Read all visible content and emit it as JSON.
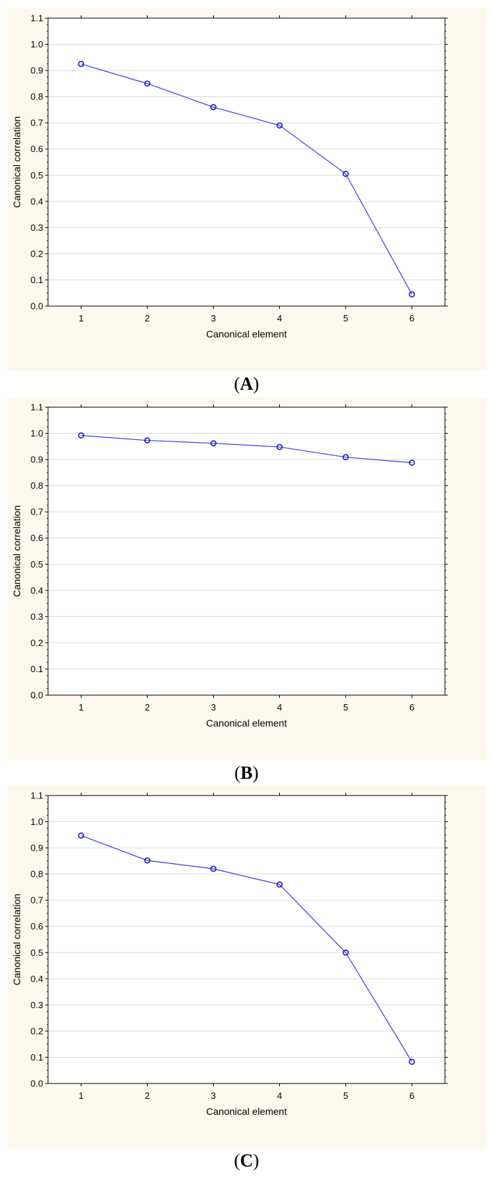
{
  "chart_data": [
    {
      "type": "line",
      "xlabel": "Canonical element",
      "ylabel": "Canonical correlation",
      "x": [
        1,
        2,
        3,
        4,
        5,
        6
      ],
      "xlim": [
        0.5,
        6.5
      ],
      "ylim": [
        0.0,
        1.1
      ],
      "yticks": [
        "0.0",
        "0.1",
        "0.2",
        "0.3",
        "0.4",
        "0.5",
        "0.6",
        "0.7",
        "0.8",
        "0.9",
        "1.0",
        "1.1"
      ],
      "grid": true,
      "series": [
        {
          "values": [
            0.925,
            0.85,
            0.76,
            0.69,
            0.505,
            0.045
          ]
        }
      ],
      "color": "#3a3aff"
    },
    {
      "type": "line",
      "xlabel": "Canonical element",
      "ylabel": "Canonical correlation",
      "x": [
        1,
        2,
        3,
        4,
        5,
        6
      ],
      "xlim": [
        0.5,
        6.5
      ],
      "ylim": [
        0.0,
        1.1
      ],
      "yticks": [
        "0.0",
        "0.1",
        "0.2",
        "0.3",
        "0.4",
        "0.5",
        "0.6",
        "0.7",
        "0.8",
        "0.9",
        "1.0",
        "1.1"
      ],
      "grid": true,
      "series": [
        {
          "values": [
            0.992,
            0.973,
            0.962,
            0.948,
            0.909,
            0.888
          ]
        }
      ],
      "color": "#3a3aff"
    },
    {
      "type": "line",
      "xlabel": "Canonical element",
      "ylabel": "Canonical correlation",
      "x": [
        1,
        2,
        3,
        4,
        5,
        6
      ],
      "xlim": [
        0.5,
        6.5
      ],
      "ylim": [
        0.0,
        1.1
      ],
      "yticks": [
        "0.0",
        "0.1",
        "0.2",
        "0.3",
        "0.4",
        "0.5",
        "0.6",
        "0.7",
        "0.8",
        "0.9",
        "1.0",
        "1.1"
      ],
      "grid": true,
      "series": [
        {
          "values": [
            0.947,
            0.852,
            0.82,
            0.76,
            0.5,
            0.083
          ]
        }
      ],
      "color": "#3a3aff"
    }
  ],
  "captions": [
    {
      "open": "(",
      "letter": "A",
      "close": ")"
    },
    {
      "open": "(",
      "letter": "B",
      "close": ")"
    },
    {
      "open": "(",
      "letter": "C",
      "close": ")"
    }
  ]
}
